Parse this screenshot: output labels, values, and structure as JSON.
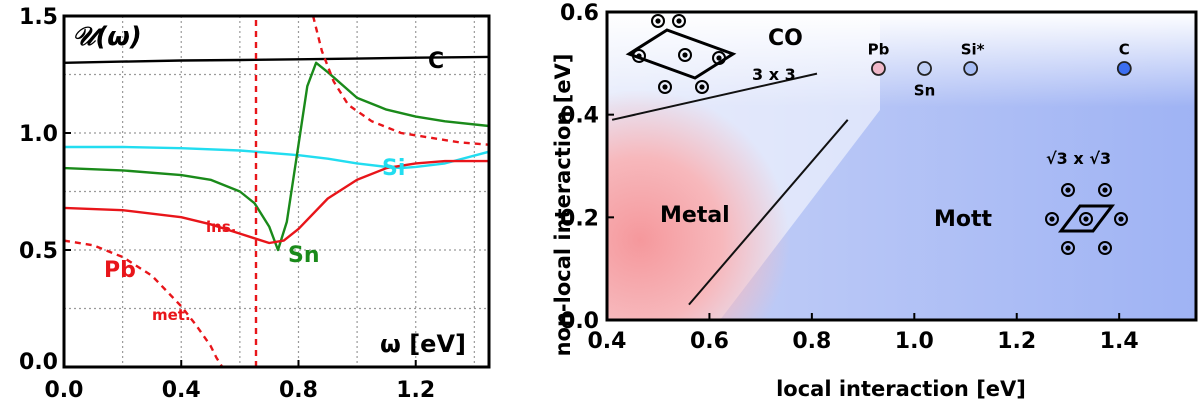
{
  "chart_data": [
    {
      "type": "line",
      "title": "𝒰(ω)",
      "xlabel": "ω [eV]",
      "ylabel": "",
      "xlim": [
        0.0,
        1.45
      ],
      "ylim": [
        0.0,
        1.5
      ],
      "xticks": [
        "0.0",
        "0.4",
        "0.8",
        "1.2"
      ],
      "yticks": [
        "0.0",
        "0.5",
        "1.0",
        "1.5"
      ],
      "grid": true,
      "colors": {
        "C": "#000000",
        "Si": "#22ddf0",
        "Sn": "#1a8a1a",
        "Pb": "#e8151a"
      },
      "series": [
        {
          "name": "C",
          "color": "#000000",
          "style": "solid",
          "x": [
            0.0,
            0.2,
            0.4,
            0.6,
            0.8,
            1.0,
            1.2,
            1.45
          ],
          "y": [
            1.3,
            1.305,
            1.31,
            1.312,
            1.315,
            1.318,
            1.322,
            1.325
          ]
        },
        {
          "name": "Si",
          "color": "#22ddf0",
          "style": "solid",
          "x": [
            0.0,
            0.2,
            0.4,
            0.6,
            0.8,
            0.9,
            1.0,
            1.1,
            1.15,
            1.2,
            1.3,
            1.45
          ],
          "y": [
            0.94,
            0.94,
            0.935,
            0.925,
            0.905,
            0.89,
            0.87,
            0.855,
            0.85,
            0.855,
            0.87,
            0.92
          ]
        },
        {
          "name": "Sn",
          "color": "#1a8a1a",
          "style": "solid",
          "x": [
            0.0,
            0.2,
            0.4,
            0.5,
            0.6,
            0.65,
            0.7,
            0.73,
            0.76,
            0.8,
            0.83,
            0.86,
            0.9,
            1.0,
            1.1,
            1.2,
            1.3,
            1.45
          ],
          "y": [
            0.85,
            0.84,
            0.82,
            0.8,
            0.75,
            0.7,
            0.6,
            0.5,
            0.62,
            0.95,
            1.2,
            1.3,
            1.26,
            1.15,
            1.1,
            1.07,
            1.05,
            1.03
          ]
        },
        {
          "name": "Pb",
          "color": "#e8151a",
          "style": "solid",
          "x": [
            0.0,
            0.2,
            0.4,
            0.5,
            0.6,
            0.65,
            0.7,
            0.75,
            0.8,
            0.9,
            1.0,
            1.1,
            1.2,
            1.3,
            1.45
          ],
          "y": [
            0.68,
            0.67,
            0.64,
            0.61,
            0.57,
            0.55,
            0.53,
            0.54,
            0.59,
            0.72,
            0.8,
            0.85,
            0.87,
            0.88,
            0.88
          ]
        },
        {
          "name": "Pb met.",
          "color": "#e8151a",
          "style": "dashed",
          "x": [
            0.0,
            0.1,
            0.2,
            0.3,
            0.4,
            0.45,
            0.5,
            0.52,
            0.54
          ],
          "y": [
            0.54,
            0.52,
            0.47,
            0.39,
            0.26,
            0.18,
            0.09,
            0.04,
            0.0
          ]
        },
        {
          "name": "Pb ins.",
          "color": "#e8151a",
          "style": "dashed",
          "x": [
            0.85,
            0.88,
            0.92,
            0.97,
            1.05,
            1.15,
            1.25,
            1.35,
            1.45
          ],
          "y": [
            1.5,
            1.35,
            1.22,
            1.12,
            1.05,
            1.0,
            0.98,
            0.96,
            0.95
          ]
        },
        {
          "name": "pole",
          "color": "#e8151a",
          "style": "dashed",
          "x": [
            0.655,
            0.655
          ],
          "y": [
            0.0,
            1.5
          ]
        }
      ],
      "annotations": [
        "C",
        "Si",
        "Sn",
        "Pb",
        "ins.",
        "met."
      ]
    },
    {
      "type": "scatter",
      "xlabel": "local interaction [eV]",
      "ylabel": "non-local interaction [eV]",
      "xlim": [
        0.4,
        1.55
      ],
      "ylim": [
        0.0,
        0.6
      ],
      "xticks": [
        "0.4",
        "0.6",
        "0.8",
        "1.0",
        "1.2",
        "1.4"
      ],
      "yticks": [
        "0.0",
        "0.2",
        "0.4",
        "0.6"
      ],
      "regions": [
        "CO",
        "Metal",
        "Mott"
      ],
      "region_colors": {
        "Metal": "#f5a0a0",
        "Mott": "#a0b4f5"
      },
      "points": [
        {
          "label": "Pb",
          "x": 0.93,
          "y": 0.49,
          "color": "#f0b8c8"
        },
        {
          "label": "Sn",
          "x": 1.02,
          "y": 0.49,
          "color": "#c0cff5"
        },
        {
          "label": "Si*",
          "x": 1.11,
          "y": 0.49,
          "color": "#a8bef5"
        },
        {
          "label": "C",
          "x": 1.41,
          "y": 0.49,
          "color": "#3c6ef0"
        }
      ],
      "boundaries": [
        {
          "x": [
            0.41,
            0.81
          ],
          "y": [
            0.39,
            0.48
          ]
        },
        {
          "x": [
            0.56,
            0.87
          ],
          "y": [
            0.03,
            0.39
          ]
        }
      ],
      "structure_labels": [
        "3 x 3",
        "√3 x √3"
      ]
    }
  ]
}
